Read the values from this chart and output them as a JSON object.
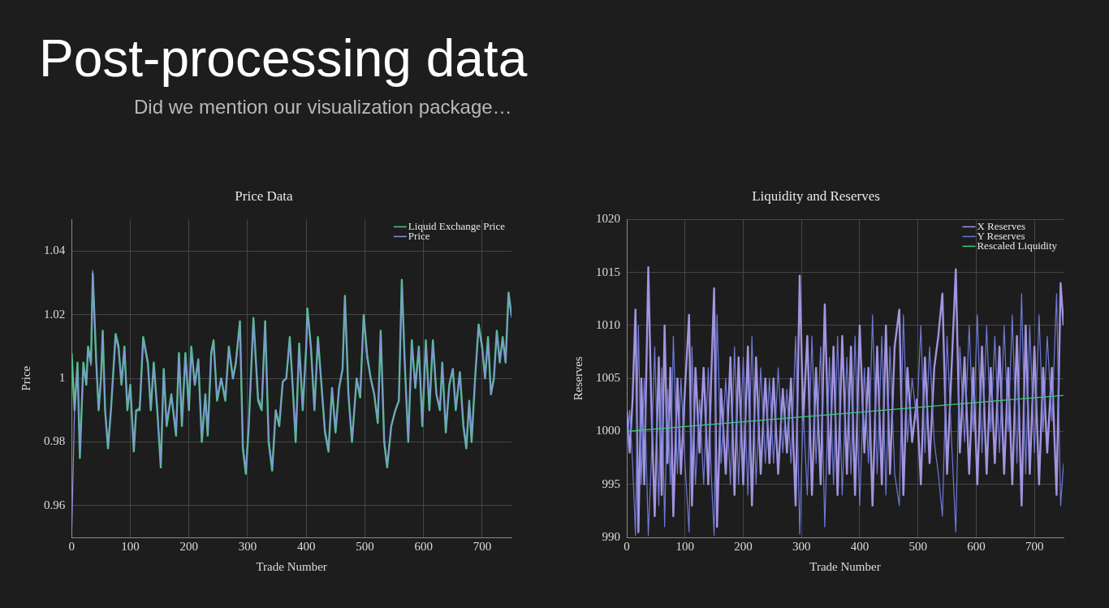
{
  "chart_data": [
    {
      "type": "other",
      "title": "Post-processing data",
      "subtitle": "Did we mention our visualization package…"
    },
    {
      "type": "line",
      "title": "Price Data",
      "xlabel": "Trade Number",
      "ylabel": "Price",
      "xlim": [
        0,
        750
      ],
      "xticks": [
        0,
        100,
        200,
        300,
        400,
        500,
        600,
        700
      ],
      "ylim": [
        0.95,
        1.05
      ],
      "yticks": [
        0.96,
        0.98,
        1,
        1.02,
        1.04
      ],
      "grid": true,
      "legend": "top right",
      "marker": "none",
      "series": [
        {
          "name": "Liquid Exchange Price",
          "color": "#4fc487",
          "x": [
            0,
            5,
            10,
            14,
            20,
            25,
            28,
            33,
            36,
            42,
            46,
            50,
            53,
            57,
            62,
            67,
            75,
            80,
            85,
            90,
            95,
            100,
            106,
            110,
            116,
            122,
            130,
            135,
            140,
            146,
            152,
            157,
            162,
            170,
            178,
            183,
            188,
            194,
            200,
            204,
            210,
            216,
            222,
            228,
            232,
            238,
            242,
            248,
            255,
            262,
            268,
            275,
            280,
            287,
            292,
            297,
            302,
            310,
            318,
            324,
            330,
            336,
            342,
            348,
            354,
            360,
            366,
            372,
            378,
            382,
            388,
            394,
            400,
            402,
            408,
            414,
            420,
            426,
            432,
            438,
            444,
            450,
            456,
            462,
            466,
            472,
            478,
            486,
            492,
            498,
            504,
            510,
            516,
            522,
            527,
            533,
            538,
            545,
            552,
            558,
            563,
            568,
            574,
            580,
            586,
            592,
            598,
            604,
            610,
            616,
            622,
            628,
            632,
            638,
            644,
            650,
            655,
            662,
            668,
            673,
            678,
            682,
            688,
            694,
            700,
            705,
            710,
            715,
            720,
            725,
            730,
            735,
            740,
            745,
            750
          ],
          "values": [
            1.008,
            0.99,
            1.005,
            0.975,
            1.005,
            0.998,
            1.01,
            1.005,
            1.033,
            1.005,
            0.99,
            1.0,
            1.015,
            0.99,
            0.978,
            0.99,
            1.014,
            1.01,
            0.998,
            1.01,
            0.99,
            0.998,
            0.977,
            0.99,
            0.99,
            1.013,
            1.005,
            0.99,
            1.005,
            0.99,
            0.972,
            1.003,
            0.985,
            0.995,
            0.982,
            1.008,
            0.985,
            1.008,
            0.99,
            1.01,
            0.998,
            1.006,
            0.98,
            0.995,
            0.982,
            1.008,
            1.012,
            0.993,
            1.0,
            0.993,
            1.01,
            1.0,
            1.005,
            1.018,
            0.978,
            0.97,
            0.985,
            1.019,
            0.993,
            0.99,
            1.018,
            0.98,
            0.971,
            0.99,
            0.985,
            0.999,
            1.0,
            1.013,
            0.994,
            0.98,
            1.011,
            0.99,
            1.01,
            1.022,
            1.01,
            0.99,
            1.013,
            0.998,
            0.983,
            0.977,
            0.997,
            0.983,
            0.997,
            1.003,
            1.026,
            0.995,
            0.98,
            1.0,
            0.994,
            1.02,
            1.007,
            1.0,
            0.995,
            0.986,
            1.015,
            0.98,
            0.972,
            0.985,
            0.99,
            0.993,
            1.031,
            1.005,
            0.98,
            1.012,
            0.997,
            1.01,
            0.985,
            1.012,
            0.99,
            1.012,
            0.995,
            0.99,
            1.005,
            0.983,
            0.998,
            1.003,
            0.99,
            1.002,
            0.985,
            0.978,
            0.993,
            0.98,
            1.0,
            1.017,
            1.01,
            1.0,
            1.013,
            0.995,
            1.0,
            1.015,
            1.005,
            1.013,
            1.005,
            1.027,
            1.02
          ]
        },
        {
          "name": "Price",
          "color": "#8a8ee6",
          "x": [
            0,
            5,
            10,
            14,
            20,
            25,
            28,
            33,
            36,
            42,
            46,
            50,
            53,
            57,
            62,
            67,
            75,
            80,
            85,
            90,
            95,
            100,
            106,
            110,
            116,
            122,
            130,
            135,
            140,
            146,
            152,
            157,
            162,
            170,
            178,
            183,
            188,
            194,
            200,
            204,
            210,
            216,
            222,
            228,
            232,
            238,
            242,
            248,
            255,
            262,
            268,
            275,
            280,
            287,
            292,
            297,
            302,
            310,
            318,
            324,
            330,
            336,
            342,
            348,
            354,
            360,
            366,
            372,
            378,
            382,
            388,
            394,
            400,
            402,
            408,
            414,
            420,
            426,
            432,
            438,
            444,
            450,
            456,
            462,
            466,
            472,
            478,
            486,
            492,
            498,
            504,
            510,
            516,
            522,
            527,
            533,
            538,
            545,
            552,
            558,
            563,
            568,
            574,
            580,
            586,
            592,
            598,
            604,
            610,
            616,
            622,
            628,
            632,
            638,
            644,
            650,
            655,
            662,
            668,
            673,
            678,
            682,
            688,
            694,
            700,
            705,
            710,
            715,
            720,
            725,
            730,
            735,
            740,
            745,
            750
          ],
          "values": [
            0.95,
            0.991,
            1.004,
            0.976,
            1.004,
            0.999,
            1.009,
            1.004,
            1.034,
            1.004,
            0.991,
            1.0,
            1.014,
            0.991,
            0.979,
            0.99,
            1.013,
            1.009,
            0.999,
            1.009,
            0.991,
            0.997,
            0.978,
            0.99,
            0.991,
            1.012,
            1.004,
            0.991,
            1.004,
            0.991,
            0.973,
            1.002,
            0.986,
            0.995,
            0.983,
            1.007,
            0.986,
            1.007,
            0.991,
            1.009,
            0.998,
            1.005,
            0.981,
            0.995,
            0.983,
            1.007,
            1.011,
            0.994,
            1.0,
            0.994,
            1.009,
            1.0,
            1.004,
            1.017,
            0.979,
            0.971,
            0.986,
            1.018,
            0.994,
            0.991,
            1.017,
            0.981,
            0.972,
            0.99,
            0.986,
            0.999,
            1.0,
            1.012,
            0.995,
            0.981,
            1.01,
            0.991,
            1.009,
            1.021,
            1.009,
            0.991,
            1.012,
            0.998,
            0.984,
            0.978,
            0.997,
            0.984,
            0.997,
            1.003,
            1.025,
            0.995,
            0.981,
            1.0,
            0.995,
            1.019,
            1.006,
            1.0,
            0.995,
            0.987,
            1.014,
            0.981,
            0.973,
            0.985,
            0.99,
            0.993,
            1.03,
            1.005,
            0.981,
            1.011,
            0.997,
            1.009,
            0.986,
            1.011,
            0.991,
            1.011,
            0.995,
            0.991,
            1.004,
            0.984,
            0.998,
            1.003,
            0.991,
            1.002,
            0.986,
            0.979,
            0.993,
            0.981,
            1.0,
            1.016,
            1.009,
            1.0,
            1.012,
            0.995,
            1.0,
            1.014,
            1.005,
            1.012,
            1.005,
            1.026,
            1.019
          ]
        }
      ]
    },
    {
      "type": "line",
      "title": "Liquidity and Reserves",
      "xlabel": "Trade Number",
      "ylabel": "Reserves",
      "xlim": [
        0,
        750
      ],
      "xticks": [
        0,
        100,
        200,
        300,
        400,
        500,
        600,
        700
      ],
      "ylim": [
        990,
        1020
      ],
      "yticks": [
        990,
        995,
        1000,
        1005,
        1010,
        1015,
        1020
      ],
      "grid": true,
      "legend": "top right",
      "marker": "none",
      "series": [
        {
          "name": "X Reserves",
          "color": "#a394e0",
          "x": [
            0,
            5,
            10,
            15,
            20,
            25,
            30,
            37,
            42,
            48,
            55,
            60,
            65,
            70,
            75,
            80,
            87,
            93,
            100,
            107,
            112,
            118,
            125,
            132,
            140,
            145,
            150,
            155,
            162,
            170,
            178,
            185,
            192,
            200,
            208,
            215,
            222,
            230,
            238,
            245,
            252,
            260,
            268,
            275,
            282,
            290,
            297,
            303,
            310,
            318,
            325,
            333,
            340,
            348,
            355,
            362,
            370,
            378,
            385,
            392,
            400,
            408,
            415,
            422,
            430,
            438,
            445,
            452,
            460,
            468,
            475,
            482,
            490,
            498,
            505,
            512,
            520,
            528,
            535,
            542,
            550,
            557,
            565,
            572,
            580,
            588,
            595,
            602,
            610,
            618,
            625,
            632,
            640,
            648,
            655,
            662,
            670,
            678,
            685,
            692,
            700,
            708,
            715,
            722,
            730,
            738,
            745,
            750
          ],
          "values": [
            1002,
            998,
            1003,
            1011.5,
            990.5,
            1005,
            995,
            1015.5,
            1003,
            992,
            1007,
            994,
            1010,
            997,
            1006,
            992,
            1005,
            996,
            1004,
            1011,
            993,
            1006,
            998,
            1006,
            995,
            1005,
            1013.5,
            991,
            1004,
            996,
            1007,
            994,
            1007,
            995,
            1008,
            993,
            1007,
            996,
            1005,
            997,
            1005,
            996,
            1004,
            998,
            1005,
            993,
            1014.7,
            1001,
            1009,
            994,
            1006,
            995,
            1012,
            996,
            1008,
            994,
            1009,
            996,
            1008,
            994,
            1010,
            998,
            1006,
            993,
            1008,
            995,
            1010,
            996,
            1008,
            1011.5,
            994,
            1006,
            999,
            1003,
            995,
            1007,
            997,
            1006,
            1009,
            1013,
            996,
            1005,
            1015.3,
            998,
            1007,
            996,
            1006,
            995,
            1008,
            996,
            1006,
            997,
            1008,
            996,
            1006,
            995,
            1009,
            993,
            1010,
            996,
            1008,
            995,
            1006,
            998,
            1006,
            994,
            1014,
            1010
          ]
        },
        {
          "name": "Y Reserves",
          "color": "#6d79d6",
          "x": [
            0,
            5,
            10,
            15,
            20,
            25,
            30,
            37,
            42,
            48,
            55,
            60,
            65,
            70,
            75,
            80,
            87,
            93,
            100,
            107,
            112,
            118,
            125,
            132,
            140,
            145,
            150,
            155,
            162,
            170,
            178,
            185,
            192,
            200,
            208,
            215,
            222,
            230,
            238,
            245,
            252,
            260,
            268,
            275,
            282,
            290,
            297,
            303,
            310,
            318,
            325,
            333,
            340,
            348,
            355,
            362,
            370,
            378,
            385,
            392,
            400,
            408,
            415,
            422,
            430,
            438,
            445,
            452,
            460,
            468,
            475,
            482,
            490,
            498,
            505,
            512,
            520,
            528,
            535,
            542,
            550,
            557,
            565,
            572,
            580,
            588,
            595,
            602,
            610,
            618,
            625,
            632,
            640,
            648,
            655,
            662,
            670,
            678,
            685,
            692,
            700,
            708,
            715,
            722,
            730,
            738,
            745,
            750
          ],
          "values": [
            998,
            1002,
            997,
            990.2,
            1010,
            995,
            1005,
            990.2,
            997,
            1008,
            993,
            1006,
            991,
            1004,
            995,
            1009,
            996,
            1005,
            997,
            990.5,
            1008,
            995,
            1003,
            995,
            1006,
            996,
            990.2,
            1011,
            997,
            1005,
            995,
            1008,
            995,
            1007,
            994,
            1009,
            995,
            1006,
            997,
            1005,
            997,
            1006,
            998,
            1004,
            997,
            1009,
            990.3,
            1002,
            994,
            1009,
            997,
            1008,
            991,
            1007,
            995,
            1009,
            994,
            1007,
            996,
            1009,
            993,
            1006,
            997,
            1011,
            996,
            1009,
            994,
            1008,
            996,
            993,
            1011,
            999,
            1005,
            1001,
            1010,
            998,
            1008,
            999,
            996,
            992,
            1009,
            1000,
            990.5,
            1008,
            999,
            1010,
            1000,
            1011,
            998,
            1010,
            1000,
            1009,
            998,
            1010,
            1000,
            1011,
            997,
            1013,
            996,
            1010,
            998,
            1011,
            1000,
            1009,
            1001,
            1013,
            993,
            997
          ]
        },
        {
          "name": "Rescaled Liquidity",
          "color": "#3ccc7a",
          "x": [
            0,
            750
          ],
          "values": [
            1000,
            1003.4
          ]
        }
      ]
    }
  ]
}
